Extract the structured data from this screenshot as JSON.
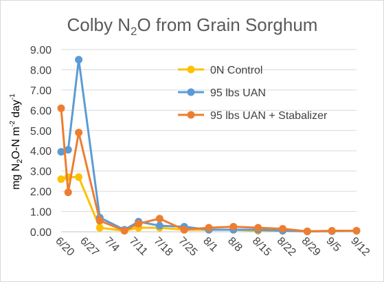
{
  "chart_data": {
    "type": "line",
    "title": {
      "prefix": "Colby N",
      "sub": "2",
      "suffix": "O from Grain Sorghum"
    },
    "ylabel": {
      "p1": "mg N",
      "sub": "2",
      "p2": "O-N m",
      "sup1": "-2",
      "p3": " day",
      "sup2": "-1"
    },
    "xlabel": "",
    "ylim": [
      0,
      9
    ],
    "xlim": [
      0,
      84
    ],
    "y_ticks": [
      "0.00",
      "1.00",
      "2.00",
      "3.00",
      "4.00",
      "5.00",
      "6.00",
      "7.00",
      "8.00",
      "9.00"
    ],
    "x_tick_labels": [
      "6/20",
      "6/27",
      "7/4",
      "7/11",
      "7/18",
      "7/25",
      "8/1",
      "8/8",
      "8/15",
      "8/22",
      "8/29",
      "9/5",
      "9/12"
    ],
    "x_tick_days": [
      0,
      7,
      14,
      21,
      28,
      35,
      42,
      49,
      56,
      63,
      70,
      77,
      84
    ],
    "grid": true,
    "legend_position": "top-right",
    "series": [
      {
        "name": "0N Control",
        "color": "#FFC000",
        "x": [
          0,
          2,
          5,
          11,
          18,
          22,
          28,
          35,
          42,
          49,
          56,
          63,
          70,
          77,
          84
        ],
        "y": [
          2.6,
          2.7,
          2.7,
          0.2,
          0.05,
          0.2,
          0.2,
          0.1,
          0.1,
          0.1,
          0.05,
          0.05,
          0.02,
          0.03,
          0.05
        ]
      },
      {
        "name": "95 lbs UAN",
        "color": "#5B9BD5",
        "x": [
          0,
          2,
          5,
          11,
          18,
          22,
          28,
          35,
          42,
          49,
          56,
          63,
          70,
          77,
          84
        ],
        "y": [
          3.95,
          4.05,
          8.5,
          0.7,
          0.1,
          0.5,
          0.3,
          0.25,
          0.1,
          0.1,
          0.1,
          0.05,
          0.02,
          0.03,
          0.05
        ]
      },
      {
        "name": "95 lbs UAN + Stabalizer",
        "color": "#ED7D31",
        "x": [
          0,
          2,
          5,
          11,
          18,
          22,
          28,
          35,
          42,
          49,
          56,
          63,
          70,
          77,
          84
        ],
        "y": [
          6.1,
          1.95,
          4.9,
          0.55,
          0.05,
          0.4,
          0.65,
          0.1,
          0.2,
          0.25,
          0.2,
          0.15,
          0.02,
          0.05,
          0.05
        ]
      }
    ]
  }
}
